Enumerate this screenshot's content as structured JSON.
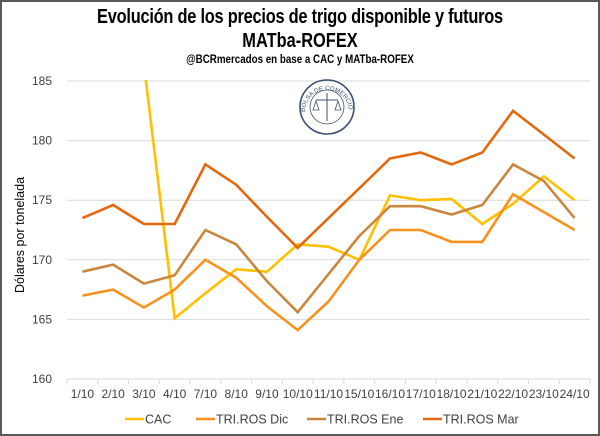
{
  "chart_data": {
    "type": "line",
    "title": "Evolución de los precios de trigo disponible y futuros MATba-ROFEX",
    "title_lines": [
      "Evolución de los precios de trigo disponible y futuros",
      "MATba-ROFEX"
    ],
    "subtitle": "@BCRmercados en base a CAC y MATba-ROFEX",
    "xlabel": "",
    "ylabel": "Dólares por tonelada",
    "ylim": [
      160,
      185
    ],
    "yticks": [
      160,
      165,
      170,
      175,
      180,
      185
    ],
    "grid": true,
    "legend_position": "bottom",
    "watermark": "BOLSA DE COMERCIO DE ROSARIO",
    "categories": [
      "1/10",
      "2/10",
      "3/10",
      "4/10",
      "7/10",
      "8/10",
      "9/10",
      "10/10",
      "11/10",
      "15/10",
      "16/10",
      "17/10",
      "18/10",
      "21/10",
      "22/10",
      "23/10",
      "24/10"
    ],
    "series": [
      {
        "name": "CAC",
        "color": "#FFC000",
        "values": [
          null,
          null,
          186.4,
          165.1,
          167.2,
          169.2,
          169.0,
          171.3,
          171.1,
          170.0,
          175.4,
          175.0,
          175.1,
          173.0,
          174.7,
          177.0,
          175.0
        ]
      },
      {
        "name": "TRI.ROS Dic",
        "color": "#F7921E",
        "values": [
          167.0,
          167.5,
          166.0,
          167.5,
          170.0,
          168.5,
          166.1,
          164.1,
          166.5,
          170.0,
          172.5,
          172.5,
          171.5,
          171.5,
          175.5,
          174.0,
          172.5
        ]
      },
      {
        "name": "TRI.ROS Ene",
        "color": "#C8873C",
        "values": [
          169.0,
          169.6,
          168.0,
          168.7,
          172.5,
          171.3,
          168.2,
          165.6,
          168.8,
          172.0,
          174.5,
          174.5,
          173.8,
          174.6,
          178.0,
          176.6,
          173.5
        ]
      },
      {
        "name": "TRI.ROS Mar",
        "color": "#E4690E",
        "values": [
          173.5,
          174.6,
          173.0,
          173.0,
          178.0,
          176.3,
          173.6,
          171.0,
          173.5,
          176.0,
          178.5,
          179.0,
          178.0,
          179.0,
          182.5,
          180.5,
          178.5
        ]
      }
    ]
  }
}
